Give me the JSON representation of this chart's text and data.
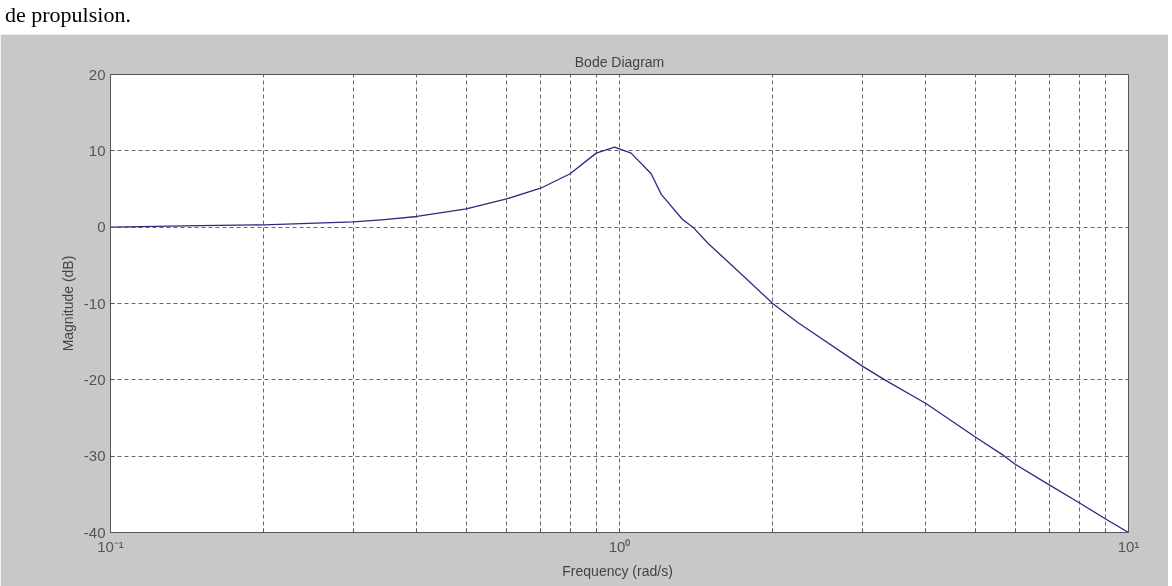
{
  "chart_data": {
    "type": "line",
    "title": "Bode Diagram",
    "xlabel": "Frequency  (rad/s)",
    "ylabel": "Magnitude (dB)",
    "annotations": [
      "de propulsion."
    ],
    "log": "x",
    "grid": true,
    "marker": "none",
    "line_style": "solid",
    "xlim": [
      0.1,
      10
    ],
    "ylim": [
      -40,
      20
    ],
    "xticks": [
      {
        "value": 0.1,
        "label": "10⁻¹"
      },
      {
        "value": 0.2,
        "label": null
      },
      {
        "value": 0.3,
        "label": null
      },
      {
        "value": 0.4,
        "label": null
      },
      {
        "value": 0.5,
        "label": null
      },
      {
        "value": 0.6,
        "label": null
      },
      {
        "value": 0.7,
        "label": null
      },
      {
        "value": 0.8,
        "label": null
      },
      {
        "value": 0.9,
        "label": null
      },
      {
        "value": 1,
        "label": "10⁰"
      },
      {
        "value": 2,
        "label": null
      },
      {
        "value": 3,
        "label": null
      },
      {
        "value": 4,
        "label": null
      },
      {
        "value": 5,
        "label": null
      },
      {
        "value": 6,
        "label": null
      },
      {
        "value": 7,
        "label": null
      },
      {
        "value": 8,
        "label": null
      },
      {
        "value": 9,
        "label": null
      },
      {
        "value": 10,
        "label": "10¹"
      }
    ],
    "yticks": [
      -40,
      -30,
      -20,
      -10,
      0,
      10,
      20
    ],
    "x": [
      0.1,
      0.15,
      0.2,
      0.3,
      0.345,
      0.4,
      0.5,
      0.6,
      0.7,
      0.8,
      0.9,
      0.978,
      1.054,
      1.154,
      1.208,
      1.33,
      1.394,
      1.492,
      1.79,
      2.0,
      2.24,
      3.0,
      3.32,
      4.0,
      5.0,
      5.68,
      6.0,
      7.0,
      8.0,
      9.0,
      10.0
    ],
    "series": [
      {
        "color": "#2b2b80",
        "values": [
          0.0,
          0.2,
          0.3,
          0.7,
          1.0,
          1.4,
          2.4,
          3.7,
          5.1,
          7.0,
          9.7,
          10.5,
          9.7,
          7.0,
          4.3,
          1.0,
          0.0,
          -2.1,
          -7.0,
          -10.0,
          -12.5,
          -18.2,
          -20.0,
          -23.1,
          -27.5,
          -29.9,
          -31.1,
          -33.8,
          -36.1,
          -38.2,
          -40.0
        ]
      }
    ]
  }
}
